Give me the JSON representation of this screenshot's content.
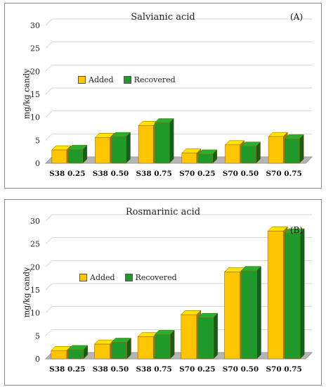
{
  "chart_data": [
    {
      "type": "bar",
      "title": "Salvianic acid",
      "panel_label": "(A)",
      "ylabel": "mg/kg candy",
      "ylim": [
        0,
        30
      ],
      "yticks": [
        0,
        5,
        10,
        15,
        20,
        25,
        30
      ],
      "categories": [
        "S38 0.25",
        "S38 0.50",
        "S38 0.75",
        "S70 0.25",
        "S70 0.50",
        "S70 0.75"
      ],
      "series": [
        {
          "name": "Added",
          "values": [
            2.9,
            5.6,
            8.2,
            2.2,
            4.0,
            5.8
          ]
        },
        {
          "name": "Recovered",
          "values": [
            3.0,
            5.8,
            8.8,
            2.0,
            3.7,
            5.3
          ]
        }
      ],
      "legend_position": "upper-left",
      "grid": true
    },
    {
      "type": "bar",
      "title": "Rosmarinic acid",
      "panel_label": "(B)",
      "ylabel": "mg/kg candy",
      "ylim": [
        0,
        30
      ],
      "yticks": [
        0,
        5,
        10,
        15,
        20,
        25,
        30
      ],
      "categories": [
        "S38 0.25",
        "S38 0.50",
        "S38 0.75",
        "S70 0.25",
        "S70 0.50",
        "S70 0.75"
      ],
      "series": [
        {
          "name": "Added",
          "values": [
            1.8,
            3.2,
            4.8,
            9.6,
            18.9,
            27.8
          ]
        },
        {
          "name": "Recovered",
          "values": [
            2.0,
            3.6,
            5.3,
            9.0,
            19.2,
            27.4
          ]
        }
      ],
      "legend_position": "middle-left",
      "grid": true
    }
  ],
  "colors": {
    "added": "#ffc600",
    "recovered": "#1f9a2a",
    "floor": "#b5b5b5"
  }
}
